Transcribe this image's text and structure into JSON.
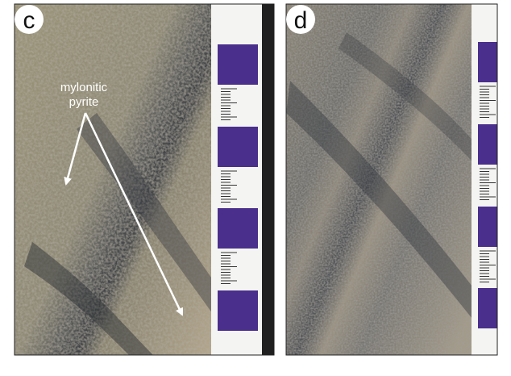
{
  "panels": [
    {
      "label": "c",
      "annotation": [
        "mylonitic",
        "pyrite"
      ]
    },
    {
      "label": "d"
    }
  ]
}
